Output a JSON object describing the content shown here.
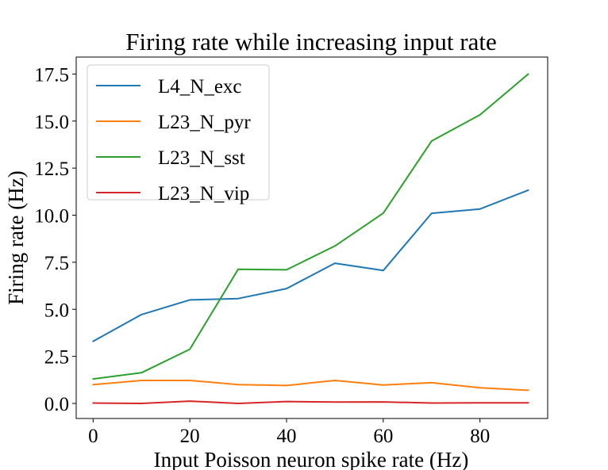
{
  "chart_data": {
    "type": "line",
    "title": "Firing rate while increasing input rate",
    "xlabel": "Input Poisson neuron spike rate (Hz)",
    "ylabel": "Firing rate (Hz)",
    "xlim": [
      -3.5,
      94
    ],
    "ylim": [
      -0.8,
      18.4
    ],
    "xticks": [
      0,
      20,
      40,
      60,
      80
    ],
    "xtick_labels": [
      "0",
      "20",
      "40",
      "60",
      "80"
    ],
    "yticks": [
      0,
      2.5,
      5,
      7.5,
      10,
      12.5,
      15,
      17.5
    ],
    "ytick_labels": [
      "0.0",
      "2.5",
      "5.0",
      "7.5",
      "10.0",
      "12.5",
      "15.0",
      "17.5"
    ],
    "grid": false,
    "legend_position": "top-left",
    "x": [
      0,
      10,
      20,
      30,
      40,
      50,
      60,
      70,
      80,
      90
    ],
    "series": [
      {
        "name": "L4_N_exc",
        "color": "#1f77b4",
        "values": [
          3.3,
          4.72,
          5.5,
          5.57,
          6.1,
          7.45,
          7.06,
          10.1,
          10.33,
          11.33
        ]
      },
      {
        "name": "L23_N_pyr",
        "color": "#ff7f0e",
        "values": [
          1.0,
          1.22,
          1.22,
          1.0,
          0.95,
          1.22,
          0.98,
          1.1,
          0.83,
          0.7
        ]
      },
      {
        "name": "L23_N_sst",
        "color": "#2ca02c",
        "values": [
          1.3,
          1.63,
          2.88,
          7.13,
          7.1,
          8.36,
          10.11,
          13.94,
          15.33,
          17.5
        ]
      },
      {
        "name": "L23_N_vip",
        "color": "#d62728",
        "values": [
          0.02,
          0.0,
          0.12,
          0.0,
          0.1,
          0.07,
          0.08,
          0.02,
          0.03,
          0.03
        ]
      }
    ]
  }
}
